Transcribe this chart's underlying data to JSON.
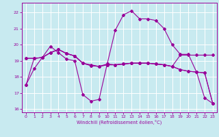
{
  "xlabel": "Windchill (Refroidissement éolien,°C)",
  "background_color": "#c8eaf0",
  "line_color": "#990099",
  "grid_color": "#ffffff",
  "xlim": [
    -0.5,
    23.5
  ],
  "ylim": [
    15.8,
    22.6
  ],
  "yticks": [
    16,
    17,
    18,
    19,
    20,
    21,
    22
  ],
  "xticks": [
    0,
    1,
    2,
    3,
    4,
    5,
    6,
    7,
    8,
    9,
    10,
    11,
    12,
    13,
    14,
    15,
    16,
    17,
    18,
    19,
    20,
    21,
    22,
    23
  ],
  "s1_y": [
    17.5,
    18.5,
    19.2,
    19.9,
    19.5,
    19.1,
    19.0,
    16.9,
    16.5,
    16.6,
    18.8,
    20.9,
    21.85,
    22.1,
    21.6,
    21.6,
    21.5,
    21.0,
    20.0,
    19.4,
    19.4,
    18.3,
    16.7,
    16.35
  ],
  "s2_y": [
    19.15,
    19.15,
    19.2,
    19.5,
    19.7,
    19.45,
    19.3,
    18.85,
    18.7,
    18.65,
    18.75,
    18.75,
    18.8,
    18.85,
    18.85,
    18.85,
    18.8,
    18.75,
    18.65,
    18.45,
    18.35,
    18.3,
    18.25,
    16.35
  ],
  "s3_y": [
    19.15,
    19.15,
    19.2,
    19.5,
    19.7,
    19.45,
    19.3,
    18.85,
    18.7,
    18.65,
    18.75,
    18.75,
    18.8,
    18.85,
    18.85,
    18.85,
    18.8,
    18.75,
    18.65,
    18.45,
    18.35,
    18.3,
    18.25,
    16.35
  ],
  "s4_y": [
    17.5,
    19.15,
    19.2,
    19.5,
    19.7,
    19.45,
    19.3,
    18.85,
    18.75,
    18.65,
    18.8,
    18.75,
    18.8,
    18.85,
    18.85,
    18.85,
    18.8,
    18.75,
    18.65,
    19.35,
    19.35,
    19.35,
    19.35,
    19.35
  ]
}
